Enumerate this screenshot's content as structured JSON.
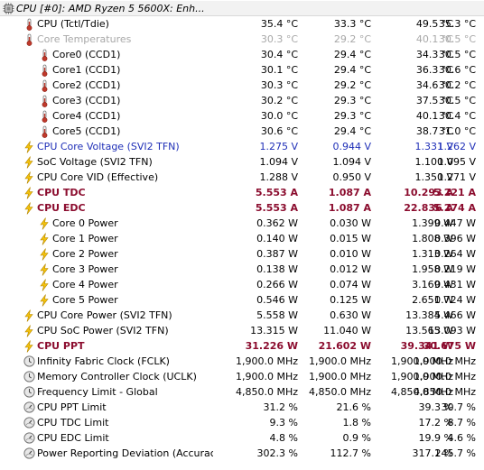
{
  "header": {
    "label": "CPU [#0]: AMD Ryzen 5 5600X: Enh..."
  },
  "rows": [
    {
      "label": "CPU (Tctl/Tdie)",
      "values": [
        "35.4 °C",
        "33.3 °C",
        "49.5 °C",
        "35.3 °C"
      ],
      "icon": "thermometer-icon",
      "indent": 1,
      "style": "normal"
    },
    {
      "label": "Core Temperatures",
      "values": [
        "30.3 °C",
        "29.2 °C",
        "40.1 °C",
        "30.5 °C"
      ],
      "icon": "thermometer-icon",
      "indent": 1,
      "style": "grey"
    },
    {
      "label": "Core0 (CCD1)",
      "values": [
        "30.4 °C",
        "29.4 °C",
        "34.3 °C",
        "30.5 °C"
      ],
      "icon": "thermometer-icon",
      "indent": 2,
      "style": "normal"
    },
    {
      "label": "Core1 (CCD1)",
      "values": [
        "30.1 °C",
        "29.4 °C",
        "36.3 °C",
        "30.6 °C"
      ],
      "icon": "thermometer-icon",
      "indent": 2,
      "style": "normal"
    },
    {
      "label": "Core2 (CCD1)",
      "values": [
        "30.3 °C",
        "29.2 °C",
        "34.6 °C",
        "30.2 °C"
      ],
      "icon": "thermometer-icon",
      "indent": 2,
      "style": "normal"
    },
    {
      "label": "Core3 (CCD1)",
      "values": [
        "30.2 °C",
        "29.3 °C",
        "37.5 °C",
        "30.5 °C"
      ],
      "icon": "thermometer-icon",
      "indent": 2,
      "style": "normal"
    },
    {
      "label": "Core4 (CCD1)",
      "values": [
        "30.0 °C",
        "29.3 °C",
        "40.1 °C",
        "30.4 °C"
      ],
      "icon": "thermometer-icon",
      "indent": 2,
      "style": "normal"
    },
    {
      "label": "Core5 (CCD1)",
      "values": [
        "30.6 °C",
        "29.4 °C",
        "38.7 °C",
        "31.0 °C"
      ],
      "icon": "thermometer-icon",
      "indent": 2,
      "style": "normal"
    },
    {
      "label": "CPU Core Voltage (SVI2 TFN)",
      "values": [
        "1.275 V",
        "0.944 V",
        "1.331 V",
        "1.262 V"
      ],
      "icon": "lightning-icon",
      "indent": 1,
      "style": "blue"
    },
    {
      "label": "SoC Voltage (SVI2 TFN)",
      "values": [
        "1.094 V",
        "1.094 V",
        "1.100 V",
        "1.095 V"
      ],
      "icon": "lightning-icon",
      "indent": 1,
      "style": "normal"
    },
    {
      "label": "CPU Core VID (Effective)",
      "values": [
        "1.288 V",
        "0.950 V",
        "1.350 V",
        "1.271 V"
      ],
      "icon": "lightning-icon",
      "indent": 1,
      "style": "normal"
    },
    {
      "label": "CPU TDC",
      "values": [
        "5.553 A",
        "1.087 A",
        "10.293 A",
        "5.221 A"
      ],
      "icon": "lightning-icon",
      "indent": 1,
      "style": "maroon"
    },
    {
      "label": "CPU EDC",
      "values": [
        "5.553 A",
        "1.087 A",
        "22.836 A",
        "5.274 A"
      ],
      "icon": "lightning-icon",
      "indent": 1,
      "style": "maroon"
    },
    {
      "label": "Core 0 Power",
      "values": [
        "0.362 W",
        "0.030 W",
        "1.399 W",
        "0.447 W"
      ],
      "icon": "lightning-icon",
      "indent": 2,
      "style": "normal"
    },
    {
      "label": "Core 1 Power",
      "values": [
        "0.140 W",
        "0.015 W",
        "1.808 W",
        "0.396 W"
      ],
      "icon": "lightning-icon",
      "indent": 2,
      "style": "normal"
    },
    {
      "label": "Core 2 Power",
      "values": [
        "0.387 W",
        "0.010 W",
        "1.313 W",
        "0.264 W"
      ],
      "icon": "lightning-icon",
      "indent": 2,
      "style": "normal"
    },
    {
      "label": "Core 3 Power",
      "values": [
        "0.138 W",
        "0.012 W",
        "1.958 W",
        "0.219 W"
      ],
      "icon": "lightning-icon",
      "indent": 2,
      "style": "normal"
    },
    {
      "label": "Core 4 Power",
      "values": [
        "0.266 W",
        "0.074 W",
        "3.169 W",
        "0.431 W"
      ],
      "icon": "lightning-icon",
      "indent": 2,
      "style": "normal"
    },
    {
      "label": "Core 5 Power",
      "values": [
        "0.546 W",
        "0.125 W",
        "2.651 W",
        "0.724 W"
      ],
      "icon": "lightning-icon",
      "indent": 2,
      "style": "normal"
    },
    {
      "label": "CPU Core Power (SVI2 TFN)",
      "values": [
        "5.558 W",
        "0.630 W",
        "13.384 W",
        "5.466 W"
      ],
      "icon": "lightning-icon",
      "indent": 1,
      "style": "normal"
    },
    {
      "label": "CPU SoC Power (SVI2 TFN)",
      "values": [
        "13.315 W",
        "11.040 W",
        "13.565 W",
        "13.093 W"
      ],
      "icon": "lightning-icon",
      "indent": 1,
      "style": "normal"
    },
    {
      "label": "CPU PPT",
      "values": [
        "31.226 W",
        "21.602 W",
        "39.341 W",
        "30.675 W"
      ],
      "icon": "lightning-icon",
      "indent": 1,
      "style": "maroon"
    },
    {
      "label": "Infinity Fabric Clock (FCLK)",
      "values": [
        "1,900.0 MHz",
        "1,900.0 MHz",
        "1,900.0 MHz",
        "1,900.0 MHz"
      ],
      "icon": "clock-icon",
      "indent": 1,
      "style": "normal"
    },
    {
      "label": "Memory Controller Clock (UCLK)",
      "values": [
        "1,900.0 MHz",
        "1,900.0 MHz",
        "1,900.0 MHz",
        "1,900.0 MHz"
      ],
      "icon": "clock-icon",
      "indent": 1,
      "style": "normal"
    },
    {
      "label": "Frequency Limit - Global",
      "values": [
        "4,850.0 MHz",
        "4,850.0 MHz",
        "4,850.0 MHz",
        "4,850.0 MHz"
      ],
      "icon": "clock-icon",
      "indent": 1,
      "style": "normal"
    },
    {
      "label": "CPU PPT Limit",
      "values": [
        "31.2 %",
        "21.6 %",
        "39.3 %",
        "30.7 %"
      ],
      "icon": "gauge-icon",
      "indent": 1,
      "style": "normal"
    },
    {
      "label": "CPU TDC Limit",
      "values": [
        "9.3 %",
        "1.8 %",
        "17.2 %",
        "8.7 %"
      ],
      "icon": "gauge-icon",
      "indent": 1,
      "style": "normal"
    },
    {
      "label": "CPU EDC Limit",
      "values": [
        "4.8 %",
        "0.9 %",
        "19.9 %",
        "4.6 %"
      ],
      "icon": "gauge-icon",
      "indent": 1,
      "style": "normal"
    },
    {
      "label": "Power Reporting Deviation (Accuracy)",
      "values": [
        "302.3 %",
        "112.7 %",
        "317.1 %",
        "245.7 %"
      ],
      "icon": "gauge-icon",
      "indent": 1,
      "style": "normal"
    }
  ],
  "colors": {
    "blue_text": "#1f2fb7",
    "maroon_text": "#8b0c2e",
    "grey_text": "#a8a8a8",
    "lightning": "#f4c20d",
    "thermometer": "#c0392b"
  }
}
